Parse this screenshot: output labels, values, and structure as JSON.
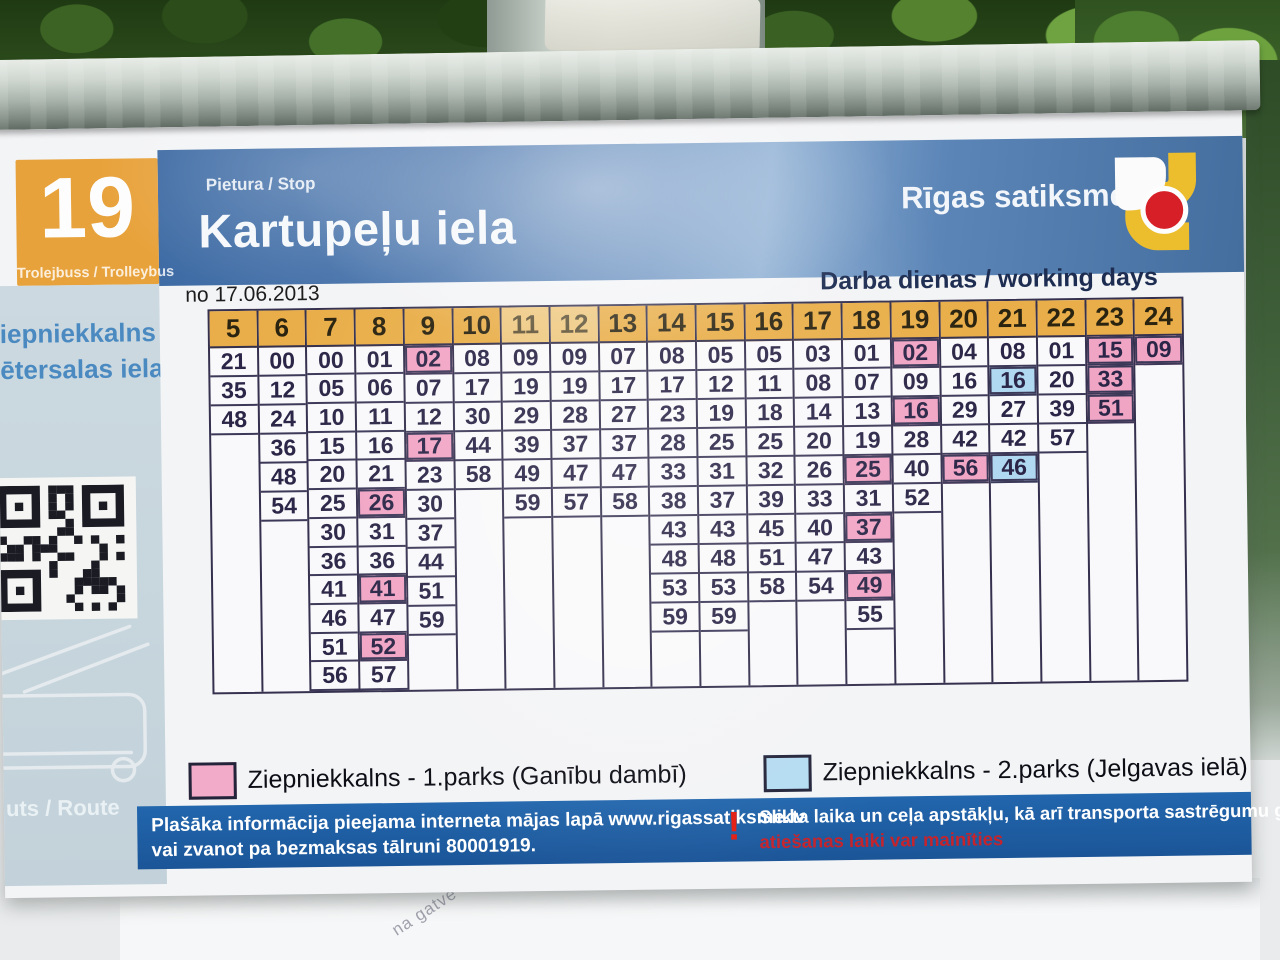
{
  "sign": {
    "route_number": "19",
    "route_type": "Trolejbuss / Trolleybus",
    "stop_label": "Pietura / Stop",
    "stop_name": "Kartupeļu iela",
    "operator": "Rīgas satiksme",
    "valid_from": "no 17.06.2013",
    "day_type": "Darba dienas / working days",
    "route_direction_line1": "iepniekkalns -",
    "route_direction_line2": "ētersalas iela",
    "route_label_vertical": "uts / Route"
  },
  "timetable": {
    "hours": [
      "5",
      "6",
      "7",
      "8",
      "9",
      "10",
      "11",
      "12",
      "13",
      "14",
      "15",
      "16",
      "17",
      "18",
      "19",
      "20",
      "21",
      "22",
      "23",
      "24"
    ],
    "columns": [
      [
        "21",
        "35",
        "48"
      ],
      [
        "00",
        "12",
        "24",
        "36",
        "48",
        "54"
      ],
      [
        "00",
        "05",
        "10",
        "15",
        "20",
        "25",
        "30",
        "36",
        "41",
        "46",
        "51",
        "56"
      ],
      [
        "01",
        "06",
        "11",
        "16",
        "21",
        {
          "t": "26",
          "m": "pink"
        },
        "31",
        "36",
        {
          "t": "41",
          "m": "pink"
        },
        "47",
        {
          "t": "52",
          "m": "pink"
        },
        "57"
      ],
      [
        {
          "t": "02",
          "m": "pink"
        },
        "07",
        "12",
        {
          "t": "17",
          "m": "pink"
        },
        "23",
        "30",
        "37",
        "44",
        "51",
        "59"
      ],
      [
        "08",
        "17",
        "30",
        "44",
        "58"
      ],
      [
        "09",
        "19",
        "29",
        "39",
        "49",
        "59"
      ],
      [
        "09",
        "19",
        "28",
        "37",
        "47",
        "57"
      ],
      [
        "07",
        "17",
        "27",
        "37",
        "47",
        "58"
      ],
      [
        "08",
        "17",
        "23",
        "28",
        "33",
        "38",
        "43",
        "48",
        "53",
        "59"
      ],
      [
        "05",
        "12",
        "19",
        "25",
        "31",
        "37",
        "43",
        "48",
        "53",
        "59"
      ],
      [
        "05",
        "11",
        "18",
        "25",
        "32",
        "39",
        "45",
        "51",
        "58"
      ],
      [
        "03",
        "08",
        "14",
        "20",
        "26",
        "33",
        "40",
        "47",
        "54"
      ],
      [
        "01",
        "07",
        "13",
        "19",
        {
          "t": "25",
          "m": "pink"
        },
        "31",
        {
          "t": "37",
          "m": "pink"
        },
        "43",
        {
          "t": "49",
          "m": "pink"
        },
        "55"
      ],
      [
        {
          "t": "02",
          "m": "pink"
        },
        "09",
        {
          "t": "16",
          "m": "pink"
        },
        "28",
        "40",
        "52"
      ],
      [
        "04",
        "16",
        "29",
        "42",
        {
          "t": "56",
          "m": "pink"
        }
      ],
      [
        "08",
        {
          "t": "16",
          "m": "blue"
        },
        "27",
        "42",
        {
          "t": "46",
          "m": "blue"
        }
      ],
      [
        "01",
        "20",
        "39",
        "57"
      ],
      [
        {
          "t": "15",
          "m": "pink"
        },
        {
          "t": "33",
          "m": "pink"
        },
        {
          "t": "51",
          "m": "pink"
        }
      ],
      [
        {
          "t": "09",
          "m": "pink"
        }
      ]
    ]
  },
  "legend": [
    {
      "mark": "pink",
      "swatch_color": "#f2abc9",
      "label": "Ziepniekkalns - 1.parks (Ganību dambī)"
    },
    {
      "mark": "blue",
      "swatch_color": "#b5dcf2",
      "label": "Ziepniekkalns - 2.parks (Jelgavas ielā)"
    }
  ],
  "footer": {
    "info_line1": "Plašāka informācija pieejama interneta mājas lapā www.rigassatiksme.lv",
    "info_line2": "vai zvanot pa bezmaksas tālruni 80001919.",
    "warning_mark": "!",
    "warning_line1": "Slikta laika un ceļa apstākļu, kā arī transporta sastrēgumu gadījumos",
    "warning_line2": "atiešanas laiki var mainīties"
  },
  "background": {
    "watermark_text": "na gatve"
  },
  "colors": {
    "highlight_pink": "#f1a5c5",
    "highlight_blue": "#b0d8f0",
    "hour_header_orange": "#e9ae49",
    "route_box_orange": "#e8a23b",
    "header_band_blue": "#4c77ae",
    "footer_bar_blue": "#1e5ca3",
    "warning_red": "#c5242c"
  }
}
